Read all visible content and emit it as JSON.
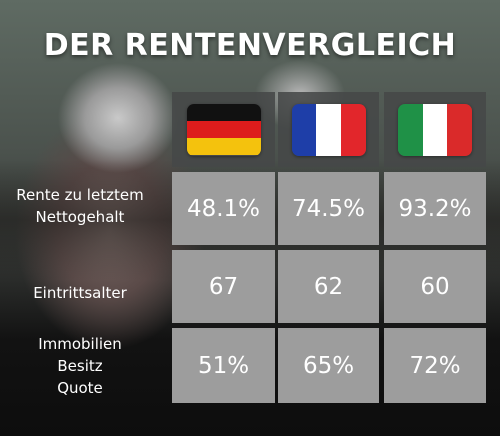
{
  "title": "DER RENTENVERGLEICH",
  "countries": [
    {
      "name": "germany",
      "stripes": "horizontal",
      "colors": [
        "#111111",
        "#dd1c1c",
        "#f4c20d"
      ]
    },
    {
      "name": "france",
      "stripes": "vertical",
      "colors": [
        "#1e3ea8",
        "#ffffff",
        "#e2262b"
      ]
    },
    {
      "name": "italy",
      "stripes": "vertical",
      "colors": [
        "#1f9147",
        "#ffffff",
        "#da2a2a"
      ]
    }
  ],
  "rows": [
    {
      "label_lines": [
        "Rente zu letztem",
        "Nettogehalt"
      ],
      "values": [
        "48.1%",
        "74.5%",
        "93.2%"
      ]
    },
    {
      "label_lines": [
        "Eintrittsalter"
      ],
      "values": [
        "67",
        "62",
        "60"
      ]
    },
    {
      "label_lines": [
        "Immobilien",
        "Besitz",
        "Quote"
      ],
      "values": [
        "51%",
        "65%",
        "72%"
      ]
    }
  ]
}
